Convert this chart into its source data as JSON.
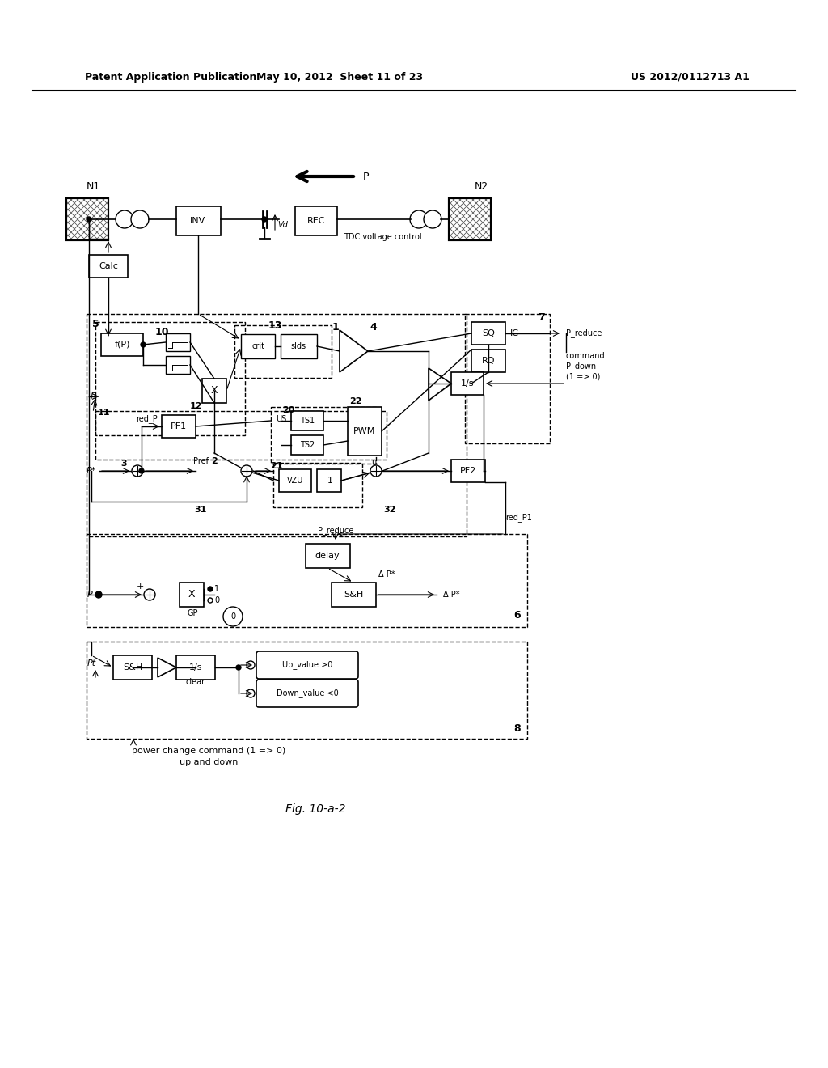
{
  "title_left": "Patent Application Publication",
  "title_mid": "May 10, 2012  Sheet 11 of 23",
  "title_right": "US 2012/0112713 A1",
  "caption": "Fig. 10-a-2",
  "bg_color": "#ffffff"
}
